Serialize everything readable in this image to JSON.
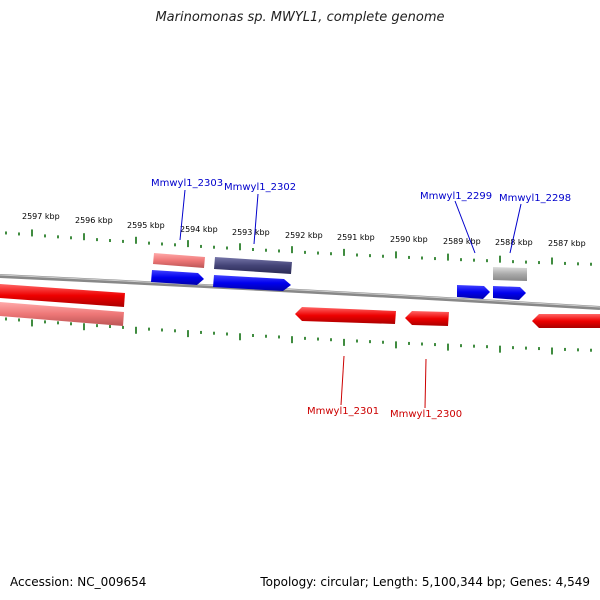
{
  "title": "Marinomonas sp. MWYL1, complete genome",
  "accession": "Accession: NC_009654",
  "summary": "Topology: circular; Length: 5,100,344 bp; Genes: 4,549",
  "colors": {
    "forward_gene": "#0000ee",
    "reverse_gene": "#ee0000",
    "forward_label": "#0000cc",
    "reverse_label": "#cc0000",
    "tick": "#006600",
    "backbone": "#777777"
  },
  "scale_labels": [
    "2597 kbp",
    "2596 kbp",
    "2595 kbp",
    "2594 kbp",
    "2593 kbp",
    "2592 kbp",
    "2591 kbp",
    "2590 kbp",
    "2589 kbp",
    "2588 kbp",
    "2587 kbp"
  ],
  "gene_labels": {
    "forward": [
      "Mmwyl1_2303",
      "Mmwyl1_2302",
      "Mmwyl1_2299",
      "Mmwyl1_2298"
    ],
    "reverse": [
      "Mmwyl1_2301",
      "Mmwyl1_2300"
    ]
  }
}
